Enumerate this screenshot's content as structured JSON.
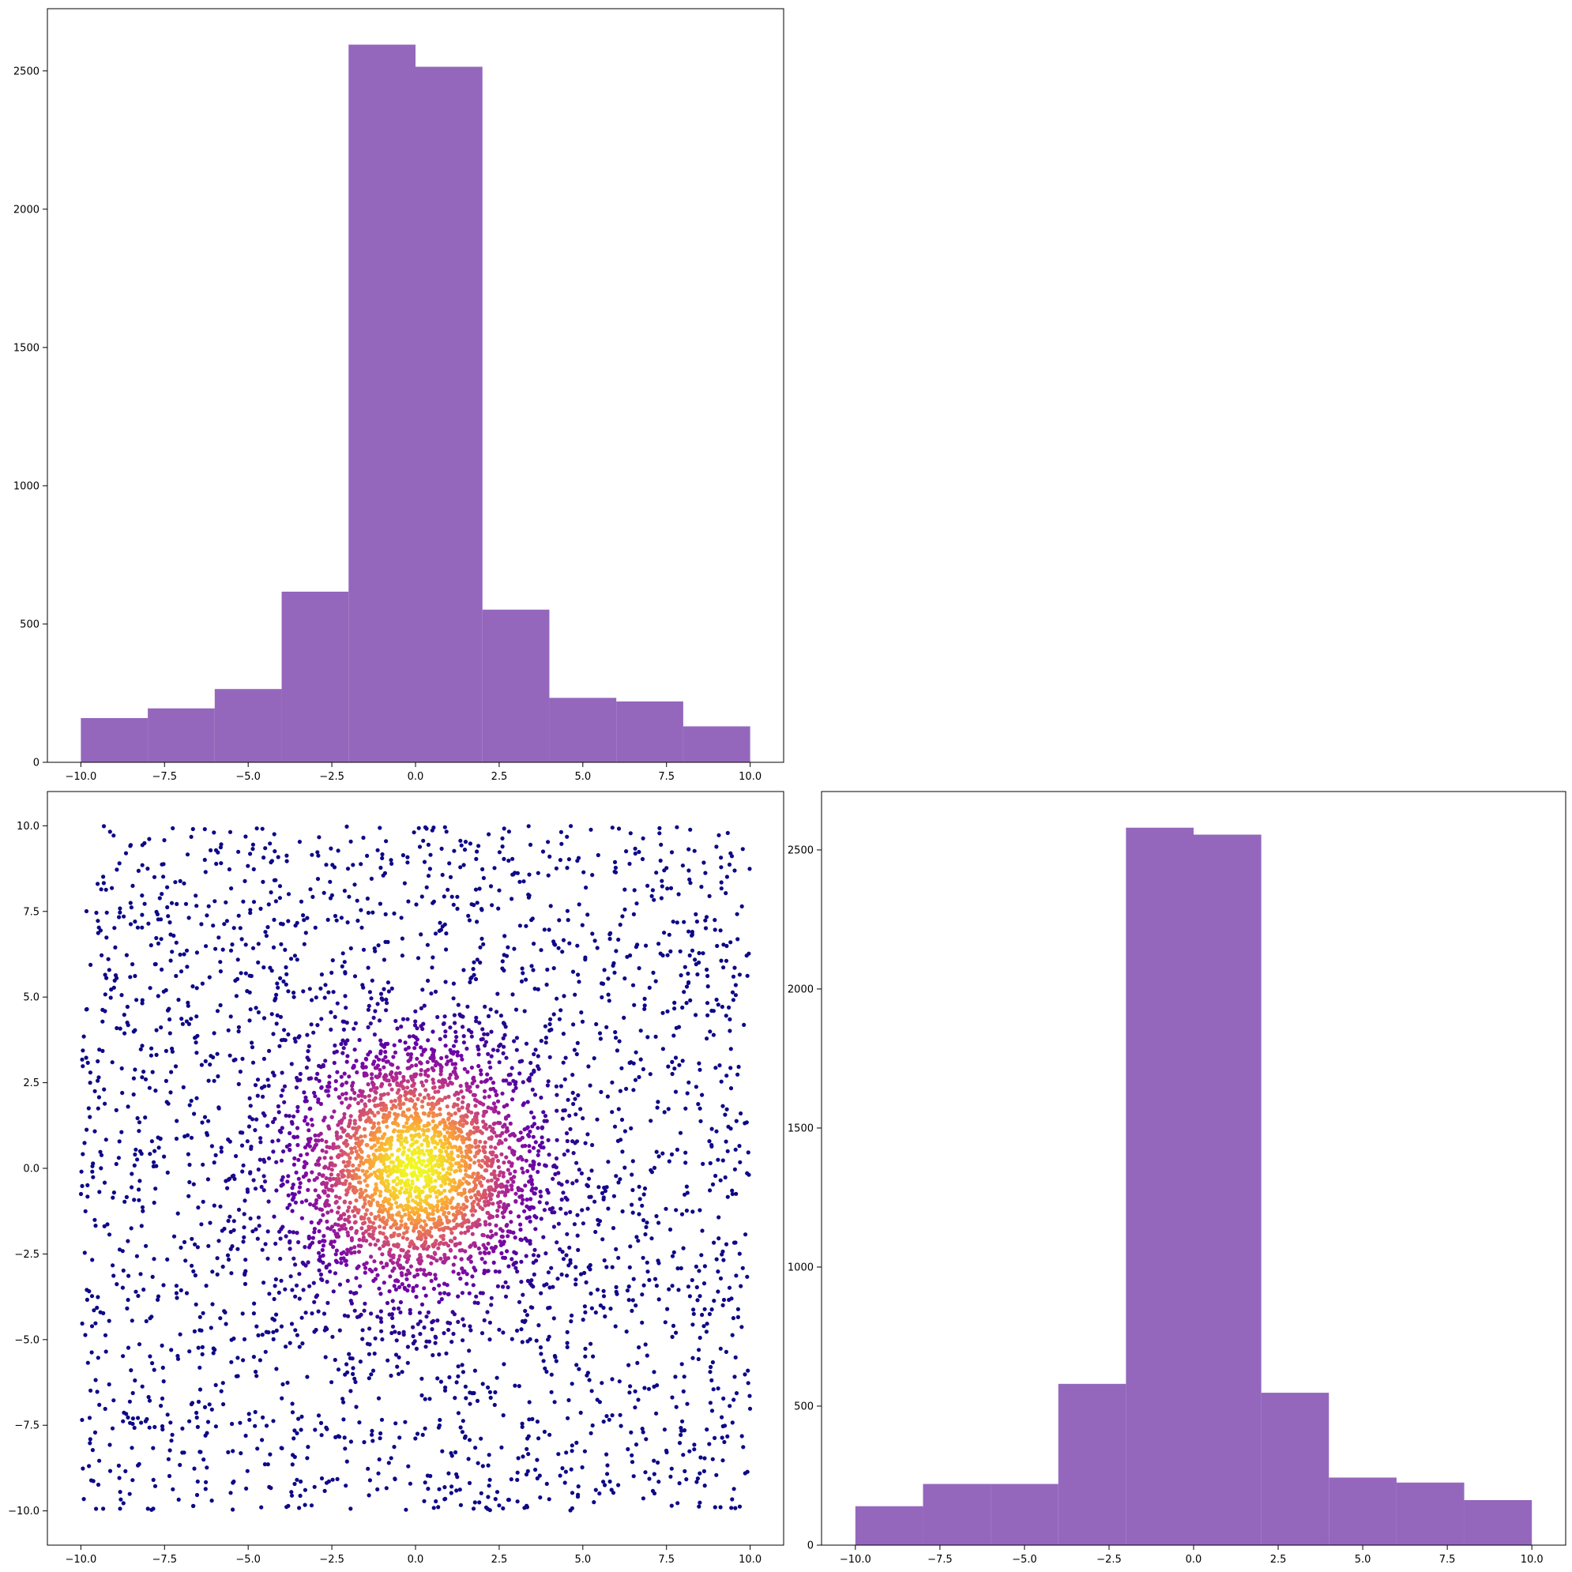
{
  "chart_data": [
    {
      "type": "bar",
      "subtype": "histogram",
      "panel": "top-left",
      "bin_edges": [
        -10,
        -8,
        -6,
        -4,
        -2,
        0,
        2,
        4,
        6,
        8,
        10
      ],
      "bars": [
        {
          "x0": -10,
          "x1": -8,
          "value": 160
        },
        {
          "x0": -8,
          "x1": -6,
          "value": 195
        },
        {
          "x0": -6,
          "x1": -4,
          "value": 265
        },
        {
          "x0": -4,
          "x1": -2,
          "value": 617
        },
        {
          "x0": -2,
          "x1": 0,
          "value": 2595
        },
        {
          "x0": 0,
          "x1": 2,
          "value": 2515
        },
        {
          "x0": 2,
          "x1": 4,
          "value": 552
        },
        {
          "x0": 4,
          "x1": 6,
          "value": 233
        },
        {
          "x0": 6,
          "x1": 8,
          "value": 220
        },
        {
          "x0": 8,
          "x1": 10,
          "value": 130
        }
      ],
      "color": "#9467bd",
      "xlim": [
        -11,
        11
      ],
      "ylim": [
        0,
        2725
      ],
      "xticks": [
        -10,
        -7.5,
        -5,
        -2.5,
        0,
        2.5,
        5,
        7.5,
        10
      ],
      "xtick_labels": [
        "−10.0",
        "−7.5",
        "−5.0",
        "−2.5",
        "0.0",
        "2.5",
        "5.0",
        "7.5",
        "10.0"
      ],
      "yticks": [
        0,
        500,
        1000,
        1500,
        2000,
        2500
      ],
      "ytick_labels": [
        "0",
        "500",
        "1000",
        "1500",
        "2000",
        "2500"
      ],
      "title": "",
      "xlabel": "",
      "ylabel": "",
      "grid": false
    },
    {
      "type": "scatter",
      "panel": "bottom-left",
      "description_of_points": "about 5000 points; half uniform on [-10,10]x[-10,10], half a dense cluster centred at (0,0) with spread about 2; colour by density (plasma colormap, yellow at the dense centre, dark blue-purple at the sparse edges)",
      "colormap": [
        "#0d0887",
        "#6a00a8",
        "#b12a90",
        "#e16462",
        "#fca636",
        "#f0f921"
      ],
      "point_count": 5000,
      "uniform_range": [
        -10,
        10
      ],
      "cluster_center": [
        0,
        0
      ],
      "cluster_spread": 2,
      "xlim": [
        -11,
        11
      ],
      "ylim": [
        -11,
        11
      ],
      "xticks": [
        -10,
        -7.5,
        -5,
        -2.5,
        0,
        2.5,
        5,
        7.5,
        10
      ],
      "xtick_labels": [
        "−10.0",
        "−7.5",
        "−5.0",
        "−2.5",
        "0.0",
        "2.5",
        "5.0",
        "7.5",
        "10.0"
      ],
      "yticks": [
        -10,
        -7.5,
        -5,
        -2.5,
        0,
        2.5,
        5,
        7.5,
        10
      ],
      "ytick_labels": [
        "−10.0",
        "−7.5",
        "−5.0",
        "−2.5",
        "0.0",
        "2.5",
        "5.0",
        "7.5",
        "10.0"
      ],
      "title": "",
      "xlabel": "",
      "ylabel": "",
      "grid": false
    },
    {
      "type": "bar",
      "subtype": "histogram",
      "panel": "bottom-right",
      "bin_edges": [
        -10,
        -8,
        -6,
        -4,
        -2,
        0,
        2,
        4,
        6,
        8,
        10
      ],
      "bars": [
        {
          "x0": -10,
          "x1": -8,
          "value": 140
        },
        {
          "x0": -8,
          "x1": -6,
          "value": 220
        },
        {
          "x0": -6,
          "x1": -4,
          "value": 220
        },
        {
          "x0": -4,
          "x1": -2,
          "value": 580
        },
        {
          "x0": -2,
          "x1": 0,
          "value": 2580
        },
        {
          "x0": 0,
          "x1": 2,
          "value": 2555
        },
        {
          "x0": 2,
          "x1": 4,
          "value": 548
        },
        {
          "x0": 4,
          "x1": 6,
          "value": 243
        },
        {
          "x0": 6,
          "x1": 8,
          "value": 225
        },
        {
          "x0": 8,
          "x1": 10,
          "value": 162
        }
      ],
      "color": "#9467bd",
      "xlim": [
        -11,
        11
      ],
      "ylim": [
        0,
        2710
      ],
      "xticks": [
        -10,
        -7.5,
        -5,
        -2.5,
        0,
        2.5,
        5,
        7.5,
        10
      ],
      "xtick_labels": [
        "−10.0",
        "−7.5",
        "−5.0",
        "−2.5",
        "0.0",
        "2.5",
        "5.0",
        "7.5",
        "10.0"
      ],
      "yticks": [
        0,
        500,
        1000,
        1500,
        2000,
        2500
      ],
      "ytick_labels": [
        "0",
        "500",
        "1000",
        "1500",
        "2000",
        "2500"
      ],
      "title": "",
      "xlabel": "",
      "ylabel": "",
      "grid": false
    }
  ]
}
